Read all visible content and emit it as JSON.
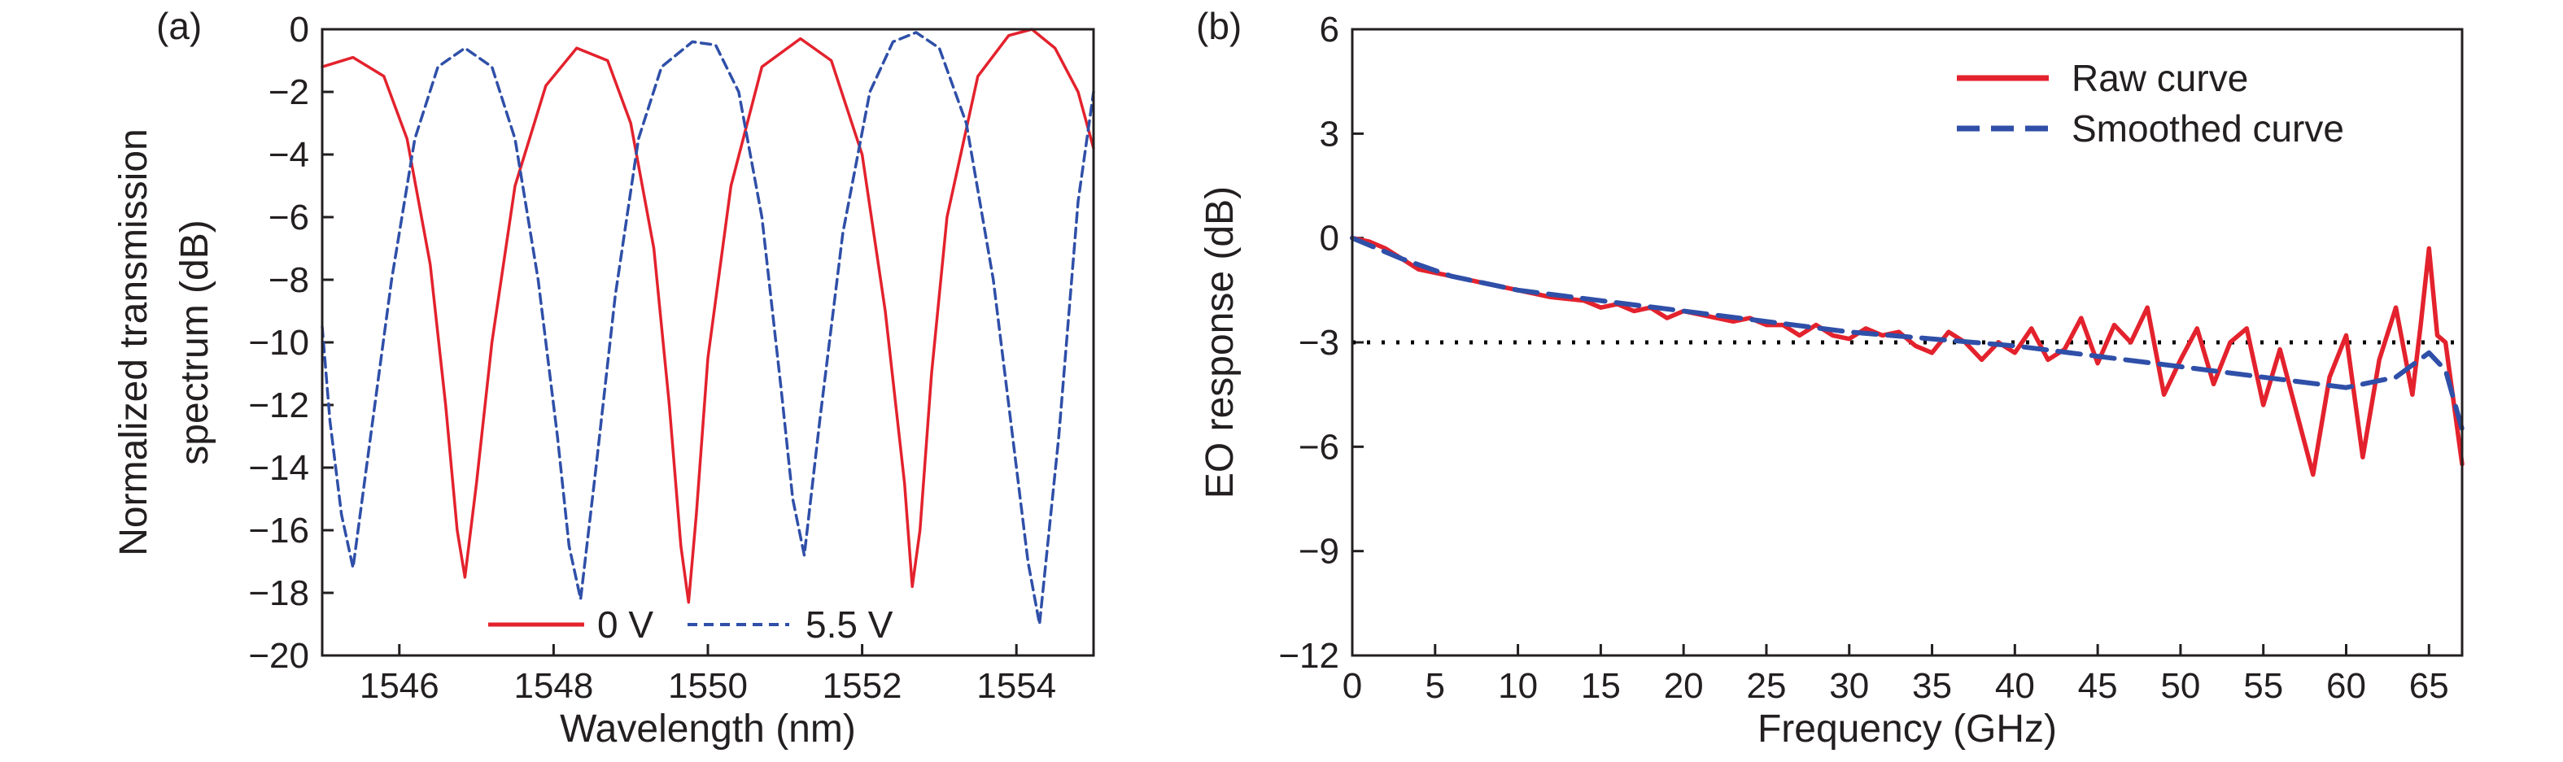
{
  "colors": {
    "red": "#e3222d",
    "blue": "#2f4fa8",
    "ink": "#231f20"
  },
  "panels": [
    {
      "label": "(a)",
      "xlabel": "Wavelength (nm)",
      "ylabel_line1": "Normalized transmission",
      "ylabel_line2": "spectrum (dB)"
    },
    {
      "label": "(b)",
      "xlabel": "Frequency (GHz)",
      "ylabel": "EO response (dB)"
    }
  ],
  "legend_a": [
    {
      "label": "0 V"
    },
    {
      "label": "5.5 V"
    }
  ],
  "legend_b": [
    {
      "label": "Raw curve"
    },
    {
      "label": "Smoothed curve"
    }
  ],
  "chart_data": [
    {
      "type": "line",
      "xlabel": "Wavelength (nm)",
      "ylabel": "Normalized transmission spectrum (dB)",
      "xlim": [
        1545,
        1555
      ],
      "ylim": [
        -20,
        0
      ],
      "xticks": [
        1546,
        1548,
        1550,
        1552,
        1554
      ],
      "yticks": [
        0,
        -2,
        -4,
        -6,
        -8,
        -10,
        -12,
        -14,
        -16,
        -18,
        -20
      ],
      "legend_position": "bottom-center",
      "series": [
        {
          "name": "0 V",
          "style": "solid",
          "color": "#e3222d",
          "x": [
            1545,
            1545.4,
            1545.8,
            1546.1,
            1546.4,
            1546.6,
            1546.75,
            1546.85,
            1547.0,
            1547.2,
            1547.5,
            1547.9,
            1548.3,
            1548.7,
            1549.0,
            1549.3,
            1549.5,
            1549.65,
            1549.75,
            1549.85,
            1550.0,
            1550.3,
            1550.7,
            1551.2,
            1551.6,
            1552.0,
            1552.3,
            1552.55,
            1552.65,
            1552.75,
            1552.9,
            1553.1,
            1553.5,
            1553.9,
            1554.2,
            1554.5,
            1554.8,
            1555
          ],
          "y": [
            -1.2,
            -0.9,
            -1.5,
            -3.5,
            -7.5,
            -12.0,
            -16.0,
            -17.5,
            -14.5,
            -10.0,
            -5.0,
            -1.8,
            -0.6,
            -1.0,
            -3.0,
            -7.0,
            -12.0,
            -16.5,
            -18.3,
            -15.5,
            -10.5,
            -5.0,
            -1.2,
            -0.3,
            -1.0,
            -4.0,
            -9.0,
            -14.5,
            -17.8,
            -16.0,
            -11.0,
            -6.0,
            -1.5,
            -0.2,
            0.0,
            -0.6,
            -2.0,
            -3.8
          ]
        },
        {
          "name": "5.5 V",
          "style": "dashed",
          "color": "#2f4fa8",
          "x": [
            1545,
            1545.1,
            1545.25,
            1545.4,
            1545.6,
            1545.9,
            1546.2,
            1546.5,
            1546.85,
            1547.2,
            1547.5,
            1547.8,
            1548.05,
            1548.2,
            1548.35,
            1548.55,
            1548.8,
            1549.1,
            1549.4,
            1549.8,
            1550.1,
            1550.4,
            1550.7,
            1550.95,
            1551.1,
            1551.25,
            1551.45,
            1551.75,
            1552.1,
            1552.4,
            1552.7,
            1553.0,
            1553.35,
            1553.7,
            1553.95,
            1554.15,
            1554.3,
            1554.55,
            1554.8,
            1555
          ],
          "y": [
            -9.5,
            -12.5,
            -15.5,
            -17.2,
            -13.5,
            -8.0,
            -3.5,
            -1.2,
            -0.6,
            -1.2,
            -3.5,
            -8.0,
            -13.0,
            -16.5,
            -18.2,
            -14.0,
            -8.5,
            -3.5,
            -1.2,
            -0.4,
            -0.5,
            -2.0,
            -6.0,
            -11.5,
            -15.0,
            -16.8,
            -12.5,
            -6.5,
            -2.0,
            -0.4,
            -0.1,
            -0.6,
            -3.0,
            -8.0,
            -13.0,
            -17.0,
            -19.0,
            -13.0,
            -5.5,
            -2.0
          ]
        }
      ]
    },
    {
      "type": "line",
      "xlabel": "Frequency (GHz)",
      "ylabel": "EO response (dB)",
      "xlim": [
        0,
        67
      ],
      "ylim": [
        -12,
        6
      ],
      "xticks": [
        0,
        5,
        10,
        15,
        20,
        25,
        30,
        35,
        40,
        45,
        50,
        55,
        60,
        65
      ],
      "yticks": [
        6,
        3,
        0,
        -3,
        -6,
        -9,
        -12
      ],
      "legend_position": "top-right",
      "reference_line": {
        "y": -3,
        "style": "dotted",
        "color": "#000000"
      },
      "series": [
        {
          "name": "Raw curve",
          "style": "solid",
          "color": "#e3222d",
          "x": [
            0,
            1,
            2,
            3,
            4,
            5,
            6,
            8,
            10,
            12,
            14,
            15,
            16,
            17,
            18,
            19,
            20,
            21,
            22,
            23,
            24,
            25,
            26,
            27,
            28,
            29,
            30,
            31,
            32,
            33,
            34,
            35,
            36,
            37,
            38,
            39,
            40,
            41,
            42,
            43,
            44,
            45,
            46,
            47,
            48,
            49,
            50,
            51,
            52,
            53,
            54,
            55,
            56,
            57,
            58,
            59,
            60,
            61,
            62,
            63,
            64,
            64.5,
            65,
            65.5,
            66,
            67
          ],
          "y": [
            0,
            -0.1,
            -0.3,
            -0.6,
            -0.9,
            -1.0,
            -1.1,
            -1.3,
            -1.5,
            -1.7,
            -1.8,
            -2.0,
            -1.9,
            -2.1,
            -2.0,
            -2.3,
            -2.1,
            -2.2,
            -2.3,
            -2.4,
            -2.3,
            -2.5,
            -2.5,
            -2.8,
            -2.5,
            -2.8,
            -2.9,
            -2.6,
            -2.8,
            -2.7,
            -3.1,
            -3.3,
            -2.7,
            -3.0,
            -3.5,
            -3.0,
            -3.3,
            -2.6,
            -3.5,
            -3.2,
            -2.3,
            -3.6,
            -2.5,
            -3.0,
            -2.0,
            -4.5,
            -3.5,
            -2.6,
            -4.2,
            -3.0,
            -2.6,
            -4.8,
            -3.2,
            -5.0,
            -6.8,
            -4.0,
            -2.8,
            -6.3,
            -3.5,
            -2.0,
            -4.5,
            -2.5,
            -0.3,
            -2.8,
            -3.0,
            -6.5
          ]
        },
        {
          "name": "Smoothed curve",
          "style": "dashed",
          "color": "#2f4fa8",
          "x": [
            0,
            3,
            6,
            10,
            15,
            20,
            25,
            30,
            35,
            40,
            45,
            50,
            55,
            60,
            63,
            65,
            66,
            67
          ],
          "y": [
            0,
            -0.6,
            -1.1,
            -1.5,
            -1.8,
            -2.1,
            -2.4,
            -2.7,
            -2.9,
            -3.1,
            -3.4,
            -3.7,
            -4.0,
            -4.3,
            -4.0,
            -3.3,
            -3.8,
            -5.5
          ]
        }
      ]
    }
  ]
}
